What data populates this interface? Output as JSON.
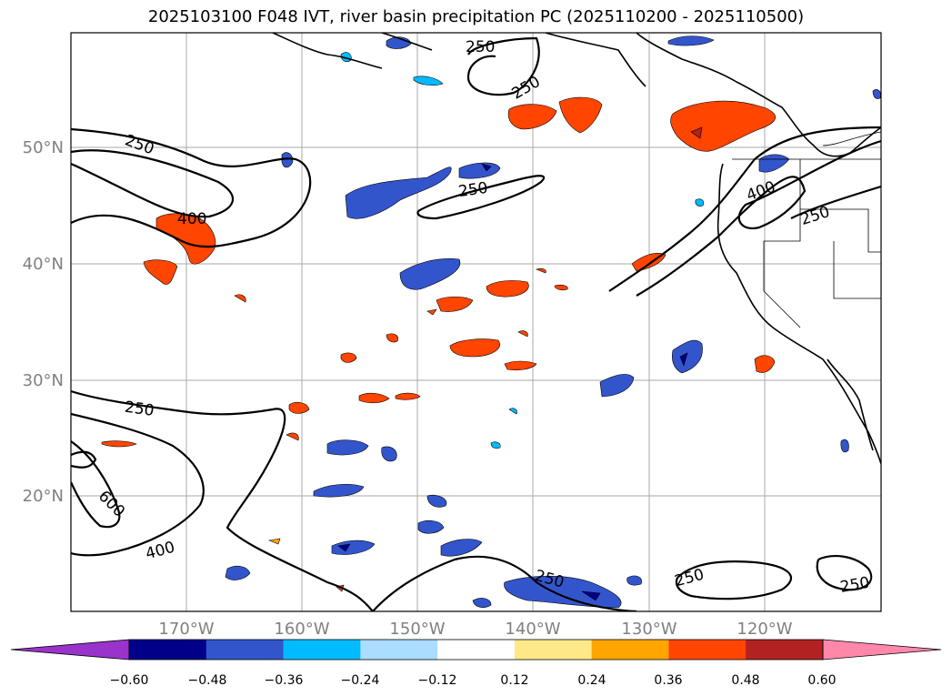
{
  "title": "2025103100 F048 IVT, river basin precipitation PC (2025110200 - 2025110500)",
  "map": {
    "lat_labels": [
      "50°N",
      "40°N",
      "30°N",
      "20°N"
    ],
    "lon_labels": [
      "170°W",
      "160°W",
      "150°W",
      "140°W",
      "130°W",
      "120°W"
    ],
    "label_color": "#808080",
    "grid": true
  },
  "contours": {
    "units": "IVT",
    "labels": [
      "250",
      "250",
      "250",
      "400",
      "250",
      "400",
      "250",
      "250",
      "600",
      "400",
      "250",
      "250",
      "250"
    ]
  },
  "colorbar": {
    "ticks": [
      "−0.60",
      "−0.48",
      "−0.36",
      "−0.24",
      "−0.12",
      "0.12",
      "0.24",
      "0.36",
      "0.48",
      "0.60"
    ],
    "colors": [
      "#9933cc",
      "#000088",
      "#3355cc",
      "#00bbff",
      "#aaddff",
      "#ffffff",
      "#ffe888",
      "#ffa500",
      "#ff4500",
      "#b22222",
      "#ff88aa"
    ],
    "extend": "both"
  }
}
